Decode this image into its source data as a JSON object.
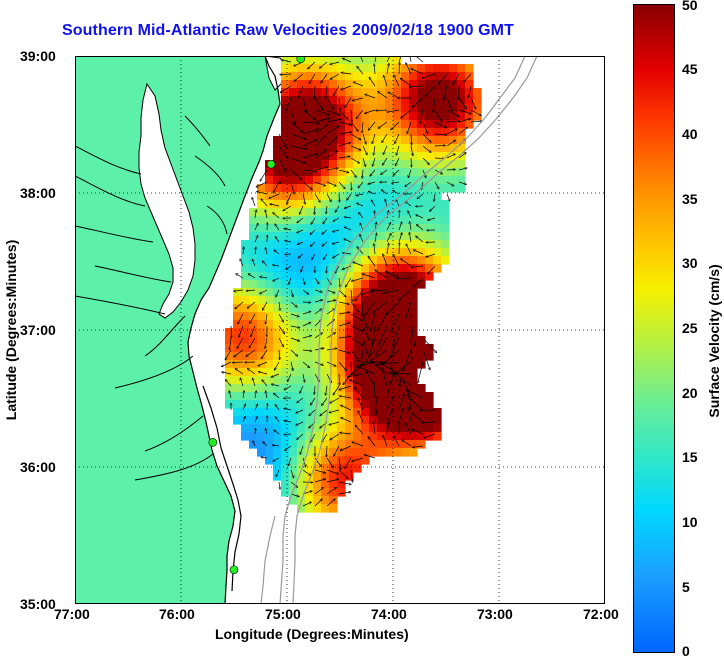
{
  "title": "Southern Mid-Atlantic Raw Velocities 2009/02/18 1900 GMT",
  "xlabel": "Longitude (Degrees:Minutes)",
  "ylabel": "Latitude (Degrees:Minutes)",
  "x_ticks": [
    "77:00",
    "76:00",
    "75:00",
    "74:00",
    "73:00",
    "72:00"
  ],
  "y_ticks": [
    "39:00",
    "38:00",
    "37:00",
    "36:00",
    "35:00"
  ],
  "colorbar": {
    "label": "Surface Velocity (cm/s)",
    "ticks": [
      "50",
      "45",
      "40",
      "35",
      "30",
      "25",
      "20",
      "15",
      "10",
      "5",
      "0"
    ],
    "range": [
      0,
      50
    ]
  },
  "colors": {
    "land": "#5cf0a8",
    "ocean": "#ffffff",
    "title": "#1010f0",
    "coast_line": "#000000",
    "bathymetry": "#999999",
    "station": "#22ee22"
  },
  "extent": {
    "lon": [
      -77,
      -72
    ],
    "lat": [
      35,
      39
    ]
  },
  "stations": [
    {
      "lon": -74.87,
      "lat": 38.98
    },
    {
      "lon": -75.15,
      "lat": 38.21
    },
    {
      "lon": -75.7,
      "lat": 36.18
    },
    {
      "lon": -75.5,
      "lat": 35.25
    }
  ]
}
